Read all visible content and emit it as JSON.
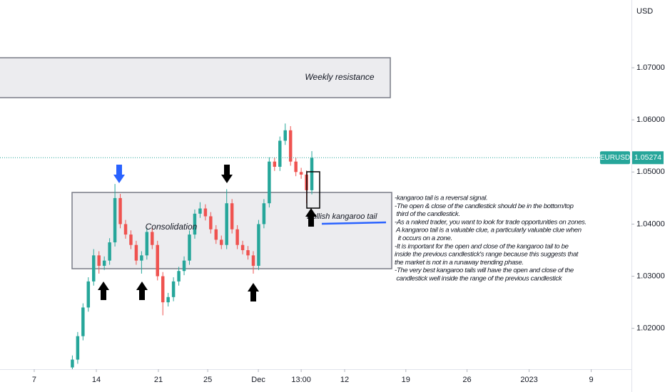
{
  "chart_data": {
    "type": "candlestick",
    "symbol": "EURUSD",
    "currency": "USD",
    "up_color": "#26a69a",
    "down_color": "#ef5350",
    "grid": false,
    "last_price": 1.05274,
    "xlim": [
      3.14,
      74.34
    ],
    "ylim": [
      1.0123,
      1.083
    ],
    "xticks": [
      {
        "value": 7,
        "label": "7"
      },
      {
        "value": 14,
        "label": "14"
      },
      {
        "value": 21,
        "label": "21"
      },
      {
        "value": 26.56,
        "label": "25"
      },
      {
        "value": 32.27,
        "label": "Dec"
      },
      {
        "value": 37.1,
        "label": "13:00"
      },
      {
        "value": 42,
        "label": "12"
      },
      {
        "value": 48.9,
        "label": "19"
      },
      {
        "value": 55.8,
        "label": "26"
      },
      {
        "value": 62.8,
        "label": "2023"
      },
      {
        "value": 69.8,
        "label": "9"
      }
    ],
    "yticks": [
      {
        "value": 1.02,
        "label": "1.02000"
      },
      {
        "value": 1.03,
        "label": "1.03000"
      },
      {
        "value": 1.04,
        "label": "1.04000"
      },
      {
        "value": 1.05,
        "label": "1.05000"
      },
      {
        "value": 1.06,
        "label": "1.06000"
      },
      {
        "value": 1.07,
        "label": "1.07000"
      }
    ],
    "x": [
      11.3,
      11.9,
      12.5,
      13.1,
      13.7,
      14.3,
      14.9,
      15.5,
      16.1,
      16.7,
      17.3,
      17.9,
      18.5,
      19.1,
      19.7,
      20.3,
      20.9,
      21.5,
      22.1,
      22.7,
      23.3,
      23.9,
      24.5,
      25.1,
      25.7,
      26.3,
      26.9,
      27.5,
      28.1,
      28.7,
      29.3,
      29.9,
      30.5,
      31.1,
      31.7,
      32.3,
      32.9,
      33.5,
      34.1,
      34.7,
      35.3,
      35.9,
      36.5,
      37.1,
      37.7,
      38.3
    ],
    "open": [
      1.0125,
      1.014,
      1.0185,
      1.024,
      1.029,
      1.034,
      1.032,
      1.033,
      1.0365,
      1.045,
      1.04,
      1.038,
      1.036,
      1.033,
      1.034,
      1.0385,
      1.036,
      1.03,
      1.025,
      1.026,
      1.029,
      1.031,
      1.033,
      1.038,
      1.042,
      1.043,
      1.0415,
      1.039,
      1.037,
      1.036,
      1.044,
      1.039,
      1.036,
      1.035,
      1.034,
      1.032,
      1.04,
      1.044,
      1.052,
      1.051,
      1.056,
      1.058,
      1.052,
      1.05,
      1.0495,
      1.0465
    ],
    "high": [
      1.0148,
      1.0193,
      1.0248,
      1.0298,
      1.0352,
      1.0348,
      1.0338,
      1.0373,
      1.0477,
      1.0458,
      1.0408,
      1.0388,
      1.0368,
      1.0348,
      1.0393,
      1.0393,
      1.0368,
      1.0308,
      1.0268,
      1.0298,
      1.0318,
      1.0338,
      1.0388,
      1.0428,
      1.0442,
      1.0438,
      1.0423,
      1.0398,
      1.0378,
      1.0467,
      1.0448,
      1.0398,
      1.0368,
      1.0358,
      1.0348,
      1.0408,
      1.0448,
      1.0528,
      1.0528,
      1.0568,
      1.0593,
      1.0588,
      1.0528,
      1.0508,
      1.0503,
      1.054
    ],
    "low": [
      1.0117,
      1.0132,
      1.0177,
      1.0232,
      1.0282,
      1.0305,
      1.0312,
      1.0322,
      1.0357,
      1.0392,
      1.0372,
      1.0352,
      1.0322,
      1.0305,
      1.0332,
      1.0352,
      1.0292,
      1.0225,
      1.0242,
      1.0252,
      1.0282,
      1.0302,
      1.0322,
      1.0372,
      1.0412,
      1.0407,
      1.0382,
      1.0362,
      1.0352,
      1.0352,
      1.0382,
      1.0352,
      1.0342,
      1.0332,
      1.0305,
      1.0312,
      1.0392,
      1.0432,
      1.0502,
      1.0502,
      1.0552,
      1.0512,
      1.0492,
      1.0487,
      1.044,
      1.0457
    ],
    "close": [
      1.014,
      1.0185,
      1.024,
      1.029,
      1.034,
      1.032,
      1.033,
      1.0365,
      1.045,
      1.04,
      1.038,
      1.036,
      1.033,
      1.034,
      1.0385,
      1.036,
      1.03,
      1.025,
      1.026,
      1.029,
      1.031,
      1.033,
      1.038,
      1.042,
      1.043,
      1.0415,
      1.039,
      1.037,
      1.036,
      1.044,
      1.039,
      1.036,
      1.035,
      1.034,
      1.032,
      1.04,
      1.044,
      1.052,
      1.051,
      1.056,
      1.058,
      1.052,
      1.05,
      1.0495,
      1.0465,
      1.0527
    ],
    "zone_labels": {
      "resistance": "Weekly resistance",
      "consolidation": "Consolidation",
      "tail": "Bullish kangaroo tail"
    },
    "notes": [
      "-kangaroo tail is a reversal signal.",
      "-The open & close of the candlestick should be in the bottom/top",
      " third of the candlestick.",
      "-As a naked trader, you want to look for trade opportunities on zones.",
      " A kangaroo tail is a valuable clue, a particularly valuable clue when",
      "  it occurs on a zone.",
      "-It is important for the open and close of the kangaroo tail to be",
      "inside the previous candlestick's range because this suggests that",
      "the market is not in a runaway trending phase.",
      "-The very best kangaroo tails will have the open and close of the",
      " candlestick well inside the range of the previous candlestick"
    ]
  }
}
